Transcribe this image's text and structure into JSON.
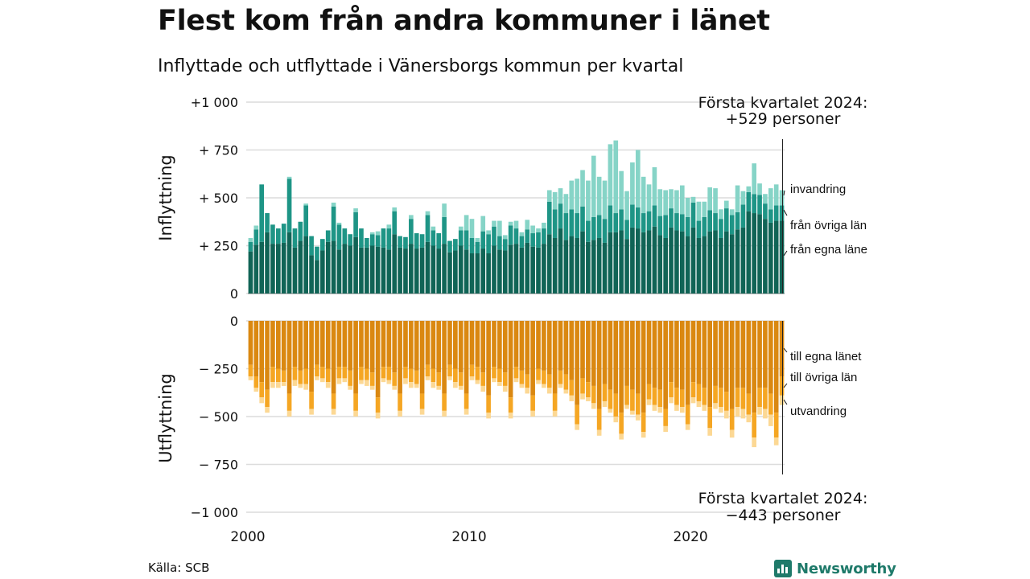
{
  "title": "Flest kom från andra kommuner i länet",
  "subtitle": "Inflyttade och utflyttade i Vänersborgs kommun per kvartal",
  "source": "Källa: SCB",
  "logo_text": "Newsworthy",
  "colors": {
    "in_own": "#106456",
    "in_other": "#1e9586",
    "in_abroad": "#86d4c7",
    "out_own": "#da8811",
    "out_other": "#f5a623",
    "out_abroad": "#fcd894",
    "grid": "#dcdcdc",
    "text": "#111111"
  },
  "chart_data": {
    "type": "bar",
    "quarter_labels": [
      "2000 Q1",
      "2000 Q2",
      "2000 Q3",
      "2000 Q4",
      "2001 Q1",
      "2001 Q2",
      "2001 Q3",
      "2001 Q4",
      "2002 Q1",
      "2002 Q2",
      "2002 Q3",
      "2002 Q4",
      "2003 Q1",
      "2003 Q2",
      "2003 Q3",
      "2003 Q4",
      "2004 Q1",
      "2004 Q2",
      "2004 Q3",
      "2004 Q4",
      "2005 Q1",
      "2005 Q2",
      "2005 Q3",
      "2005 Q4",
      "2006 Q1",
      "2006 Q2",
      "2006 Q3",
      "2006 Q4",
      "2007 Q1",
      "2007 Q2",
      "2007 Q3",
      "2007 Q4",
      "2008 Q1",
      "2008 Q2",
      "2008 Q3",
      "2008 Q4",
      "2009 Q1",
      "2009 Q2",
      "2009 Q3",
      "2009 Q4",
      "2010 Q1",
      "2010 Q2",
      "2010 Q3",
      "2010 Q4",
      "2011 Q1",
      "2011 Q2",
      "2011 Q3",
      "2011 Q4",
      "2012 Q1",
      "2012 Q2",
      "2012 Q3",
      "2012 Q4",
      "2013 Q1",
      "2013 Q2",
      "2013 Q3",
      "2013 Q4",
      "2014 Q1",
      "2014 Q2",
      "2014 Q3",
      "2014 Q4",
      "2015 Q1",
      "2015 Q2",
      "2015 Q3",
      "2015 Q4",
      "2016 Q1",
      "2016 Q2",
      "2016 Q3",
      "2016 Q4",
      "2017 Q1",
      "2017 Q2",
      "2017 Q3",
      "2017 Q4",
      "2018 Q1",
      "2018 Q2",
      "2018 Q3",
      "2018 Q4",
      "2019 Q1",
      "2019 Q2",
      "2019 Q3",
      "2019 Q4",
      "2020 Q1",
      "2020 Q2",
      "2020 Q3",
      "2020 Q4",
      "2021 Q1",
      "2021 Q2",
      "2021 Q3",
      "2021 Q4",
      "2022 Q1",
      "2022 Q2",
      "2022 Q3",
      "2022 Q4",
      "2023 Q1",
      "2023 Q2",
      "2023 Q3",
      "2023 Q4",
      "2024 Q1"
    ],
    "x_ticks": [
      {
        "value": 2000,
        "label": "2000"
      },
      {
        "value": 2010,
        "label": "2010"
      },
      {
        "value": 2020,
        "label": "2020"
      }
    ],
    "x_range": [
      2000,
      2024.25
    ],
    "panels": [
      {
        "name": "inflyttning",
        "ylabel": "Inflyttning",
        "ylim": [
          0,
          1000
        ],
        "y_ticks": [
          {
            "value": 1000,
            "label": "+1 000"
          },
          {
            "value": 750,
            "label": "+  750"
          },
          {
            "value": 500,
            "label": "+  500"
          },
          {
            "value": 250,
            "label": "+  250"
          },
          {
            "value": 0,
            "label": "0"
          }
        ],
        "annotation": {
          "line1": "Första kvartalet 2024:",
          "line2": "+529 personer"
        },
        "series": [
          {
            "name": "från egna läne",
            "color_key": "in_own",
            "values": [
              220,
              255,
              270,
              320,
              260,
              260,
              265,
              320,
              240,
              275,
              300,
              200,
              175,
              225,
              270,
              275,
              230,
              260,
              250,
              295,
              240,
              240,
              250,
              245,
              240,
              230,
              310,
              240,
              235,
              260,
              235,
              240,
              270,
              250,
              235,
              260,
              215,
              225,
              250,
              230,
              210,
              210,
              235,
              210,
              250,
              230,
              225,
              255,
              260,
              240,
              265,
              245,
              240,
              260,
              310,
              290,
              340,
              280,
              300,
              290,
              325,
              270,
              280,
              290,
              265,
              320,
              320,
              330,
              285,
              345,
              340,
              320,
              330,
              350,
              305,
              290,
              345,
              330,
              325,
              300,
              345,
              290,
              300,
              325,
              330,
              290,
              325,
              310,
              335,
              345,
              430,
              420,
              415,
              390,
              370,
              380,
              380
            ]
          },
          {
            "name": "från övriga län",
            "color_key": "in_other",
            "values": [
              50,
              80,
              300,
              100,
              100,
              80,
              100,
              280,
              100,
              100,
              160,
              100,
              70,
              60,
              60,
              180,
              130,
              80,
              60,
              130,
              100,
              50,
              60,
              60,
              100,
              110,
              120,
              60,
              60,
              130,
              80,
              70,
              140,
              80,
              80,
              140,
              60,
              60,
              80,
              100,
              80,
              60,
              90,
              100,
              100,
              70,
              60,
              100,
              80,
              60,
              70,
              70,
              80,
              80,
              170,
              150,
              130,
              140,
              140,
              130,
              130,
              110,
              120,
              120,
              125,
              140,
              100,
              110,
              100,
              120,
              110,
              100,
              100,
              110,
              100,
              120,
              100,
              90,
              90,
              100,
              130,
              90,
              100,
              110,
              90,
              100,
              120,
              100,
              90,
              120,
              100,
              100,
              100,
              80,
              70,
              80,
              80
            ]
          },
          {
            "name": "invandring",
            "color_key": "in_abroad",
            "values": [
              20,
              20,
              0,
              0,
              0,
              0,
              0,
              10,
              0,
              0,
              10,
              0,
              0,
              0,
              0,
              20,
              10,
              0,
              0,
              20,
              0,
              0,
              10,
              20,
              0,
              20,
              20,
              0,
              0,
              20,
              0,
              0,
              20,
              20,
              0,
              70,
              0,
              0,
              20,
              80,
              100,
              20,
              80,
              20,
              30,
              80,
              20,
              20,
              40,
              20,
              50,
              40,
              20,
              30,
              60,
              90,
              80,
              100,
              150,
              180,
              190,
              210,
              320,
              200,
              200,
              320,
              380,
              200,
              150,
              220,
              300,
              190,
              140,
              200,
              140,
              130,
              100,
              120,
              150,
              100,
              30,
              100,
              80,
              120,
              130,
              50,
              40,
              30,
              140,
              70,
              30,
              160,
              60,
              50,
              110,
              110,
              80
            ]
          }
        ]
      },
      {
        "name": "utflyttning",
        "ylabel": "Utflyttning",
        "ylim": [
          -1000,
          0
        ],
        "y_ticks": [
          {
            "value": 0,
            "label": "0"
          },
          {
            "value": -250,
            "label": "−  250"
          },
          {
            "value": -500,
            "label": "−  500"
          },
          {
            "value": -750,
            "label": "−  750"
          },
          {
            "value": -1000,
            "label": "−1 000"
          }
        ],
        "annotation": {
          "line1": "Första kvartalet 2024:",
          "line2": "−443 personer"
        },
        "series": [
          {
            "name": "till egna länet",
            "color_key": "out_own",
            "values": [
              -230,
              -290,
              -320,
              -360,
              -240,
              -250,
              -260,
              -380,
              -240,
              -260,
              -250,
              -370,
              -230,
              -240,
              -250,
              -380,
              -240,
              -240,
              -260,
              -380,
              -240,
              -250,
              -270,
              -400,
              -240,
              -240,
              -270,
              -380,
              -240,
              -250,
              -260,
              -380,
              -230,
              -250,
              -270,
              -380,
              -230,
              -250,
              -270,
              -380,
              -230,
              -240,
              -270,
              -390,
              -240,
              -250,
              -270,
              -400,
              -240,
              -260,
              -280,
              -390,
              -250,
              -260,
              -280,
              -380,
              -260,
              -280,
              -310,
              -440,
              -300,
              -320,
              -340,
              -460,
              -330,
              -360,
              -380,
              -480,
              -340,
              -360,
              -380,
              -480,
              -330,
              -350,
              -360,
              -460,
              -320,
              -350,
              -360,
              -440,
              -320,
              -330,
              -350,
              -450,
              -340,
              -350,
              -370,
              -460,
              -350,
              -350,
              -380,
              -480,
              -350,
              -350,
              -380,
              -480,
              -290
            ]
          },
          {
            "name": "till övriga län",
            "color_key": "out_other",
            "values": [
              -60,
              -60,
              -80,
              -90,
              -80,
              -70,
              -60,
              -90,
              -70,
              -70,
              -80,
              -90,
              -60,
              -60,
              -70,
              -80,
              -60,
              -60,
              -80,
              -90,
              -70,
              -60,
              -70,
              -80,
              -60,
              -70,
              -70,
              -90,
              -60,
              -70,
              -70,
              -80,
              -60,
              -70,
              -70,
              -90,
              -60,
              -70,
              -70,
              -80,
              -60,
              -70,
              -70,
              -90,
              -60,
              -70,
              -70,
              -80,
              -60,
              -70,
              -70,
              -80,
              -60,
              -70,
              -70,
              -90,
              -70,
              -80,
              -80,
              -100,
              -80,
              -80,
              -90,
              -110,
              -90,
              -100,
              -120,
              -110,
              -100,
              -110,
              -110,
              -100,
              -80,
              -90,
              -90,
              -90,
              -80,
              -90,
              -90,
              -100,
              -80,
              -90,
              -90,
              -110,
              -90,
              -100,
              -100,
              -110,
              -100,
              -110,
              -110,
              -130,
              -100,
              -110,
              -110,
              -130,
              -100
            ]
          },
          {
            "name": "utvandring",
            "color_key": "out_abroad",
            "values": [
              -20,
              -20,
              -30,
              -30,
              -30,
              -30,
              -20,
              -30,
              -30,
              -20,
              -30,
              -30,
              -20,
              -20,
              -30,
              -30,
              -30,
              -20,
              -20,
              -30,
              -20,
              -30,
              -20,
              -30,
              -20,
              -20,
              -20,
              -30,
              -30,
              -30,
              -20,
              -30,
              -20,
              -30,
              -20,
              -30,
              -20,
              -30,
              -20,
              -30,
              -20,
              -20,
              -30,
              -30,
              -20,
              -20,
              -30,
              -30,
              -20,
              -20,
              -30,
              -30,
              -20,
              -20,
              -30,
              -30,
              -20,
              -20,
              -30,
              -30,
              -30,
              -20,
              -30,
              -30,
              -30,
              -20,
              -30,
              -30,
              -20,
              -20,
              -30,
              -30,
              -30,
              -30,
              -30,
              -30,
              -30,
              -30,
              -30,
              -30,
              -30,
              -30,
              -30,
              -40,
              -30,
              -30,
              -40,
              -40,
              -50,
              -50,
              -40,
              -50,
              -40,
              -50,
              -60,
              -40,
              -50
            ]
          }
        ]
      }
    ],
    "series_labels_in": [
      "invandring",
      "från övriga län",
      "från egna läne"
    ],
    "series_labels_out": [
      "till egna länet",
      "till övriga län",
      "utvandring"
    ]
  }
}
